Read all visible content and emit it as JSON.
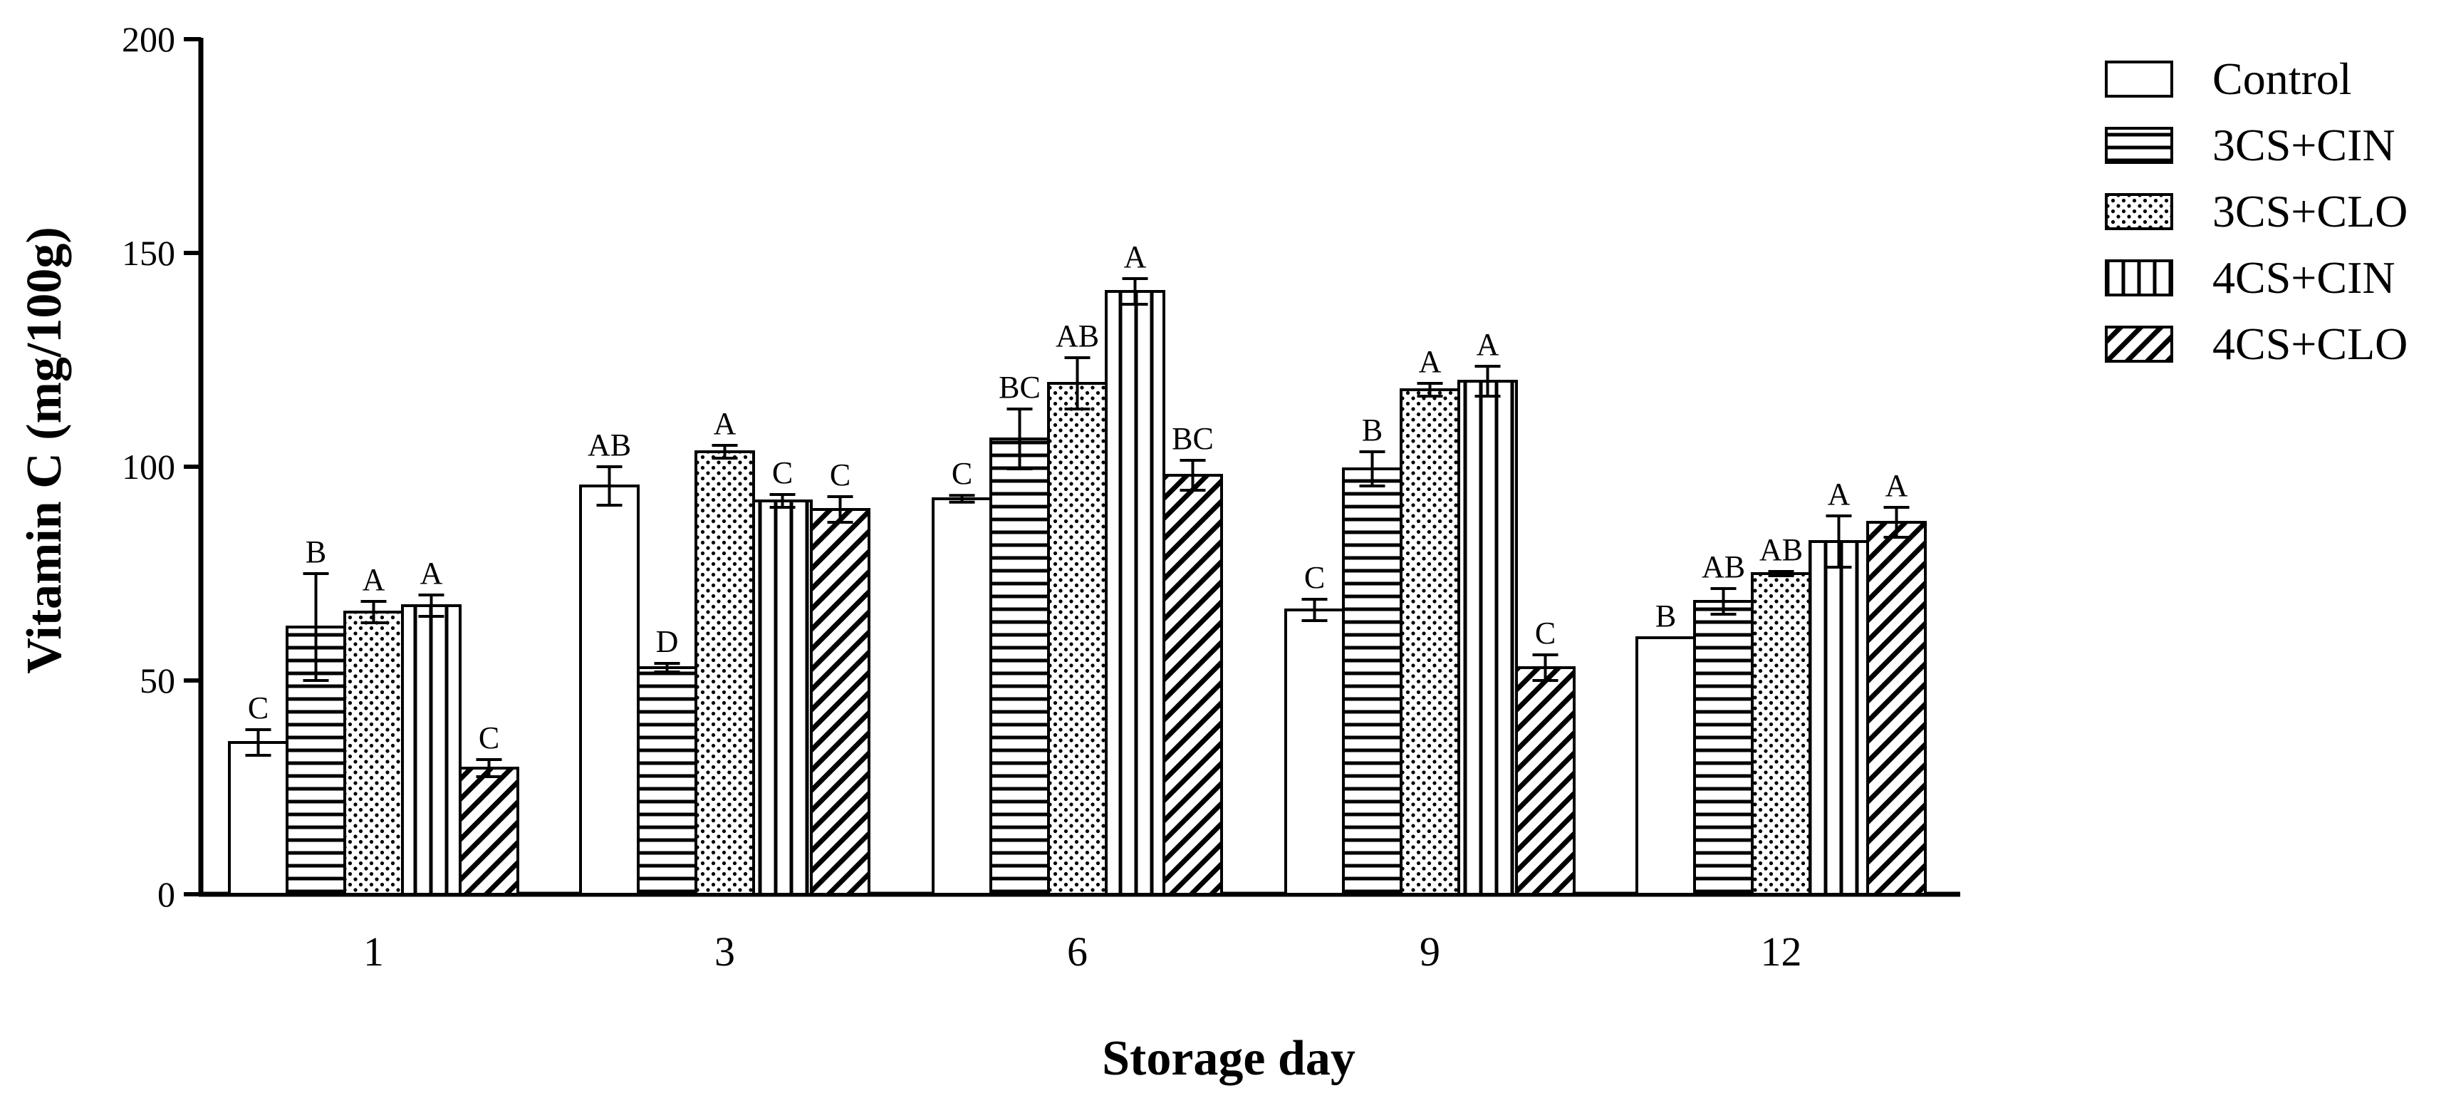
{
  "chart_data": {
    "type": "bar",
    "title": "",
    "xlabel": "Storage day",
    "ylabel": "Vitamin C (mg/100g)",
    "ylim": [
      0,
      200
    ],
    "yticks": [
      0,
      50,
      100,
      150,
      200
    ],
    "categories": [
      "1",
      "3",
      "6",
      "9",
      "12"
    ],
    "legend_position": "right",
    "series": [
      {
        "name": "Control",
        "pattern": "blank",
        "values": [
          35.5,
          95.5,
          92.5,
          66.5,
          60.0
        ],
        "errors": [
          3.0,
          4.5,
          0.8,
          2.5,
          0.0
        ],
        "labels": [
          "C",
          "AB",
          "C",
          "C",
          "B"
        ]
      },
      {
        "name": "3CS+CIN",
        "pattern": "horizontal",
        "values": [
          62.5,
          53.0,
          106.5,
          99.5,
          68.5
        ],
        "errors": [
          12.5,
          1.0,
          7.0,
          4.0,
          3.0
        ],
        "labels": [
          "B",
          "D",
          "BC",
          "B",
          "AB"
        ]
      },
      {
        "name": "3CS+CLO",
        "pattern": "dots",
        "values": [
          66.0,
          103.5,
          119.5,
          118.0,
          75.0
        ],
        "errors": [
          2.5,
          1.5,
          6.0,
          1.5,
          0.5
        ],
        "labels": [
          "A",
          "A",
          "AB",
          "A",
          "AB"
        ]
      },
      {
        "name": "4CS+CIN",
        "pattern": "vertical",
        "values": [
          67.5,
          92.0,
          141.0,
          120.0,
          82.5
        ],
        "errors": [
          2.5,
          1.5,
          3.0,
          3.5,
          6.0
        ],
        "labels": [
          "A",
          "C",
          "A",
          "A",
          "A"
        ]
      },
      {
        "name": "4CS+CLO",
        "pattern": "diagonal",
        "values": [
          29.5,
          90.0,
          98.0,
          53.0,
          87.0
        ],
        "errors": [
          2.0,
          3.0,
          3.5,
          3.0,
          3.5
        ],
        "labels": [
          "C",
          "C",
          "BC",
          "C",
          "A"
        ]
      }
    ]
  }
}
